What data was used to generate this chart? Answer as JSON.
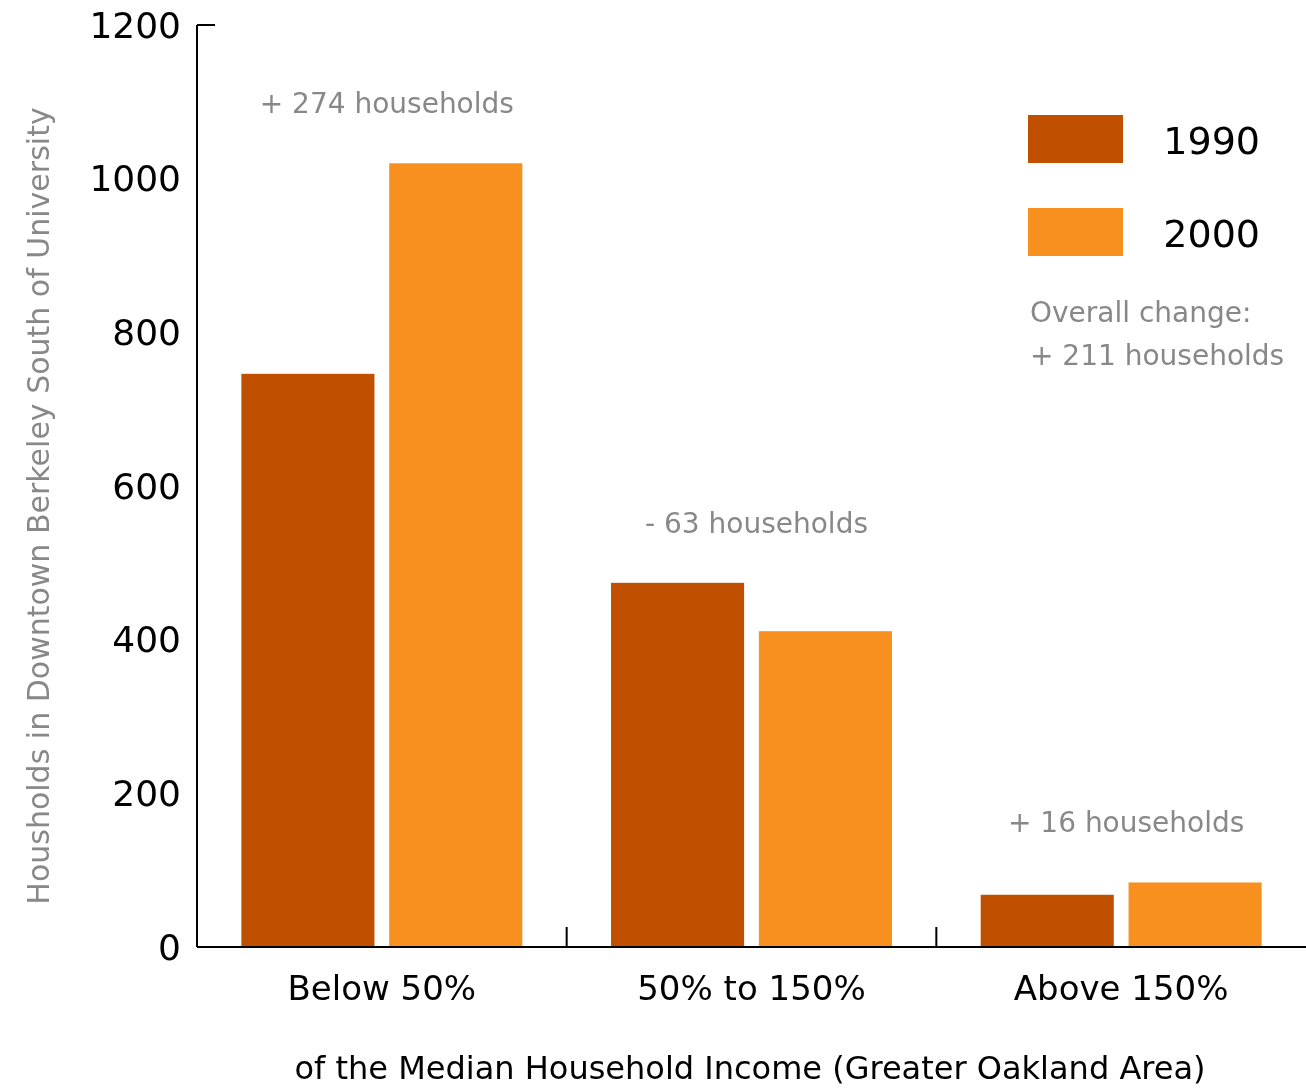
{
  "chart_data": {
    "type": "bar",
    "xlabel": "of the Median Household Income (Greater Oakland Area)",
    "ylabel": "Housholds in Downtown Berkeley South of University",
    "categories": [
      "Below 50%",
      "50% to 150%",
      "Above 150%"
    ],
    "series": [
      {
        "name": "1990",
        "color": "#c05000",
        "values": [
          746,
          474,
          68
        ]
      },
      {
        "name": "2000",
        "color": "#f7901e",
        "values": [
          1020,
          411,
          84
        ]
      }
    ],
    "ylim": [
      0,
      1200
    ],
    "yticks": [
      0,
      200,
      400,
      600,
      800,
      1000,
      1200
    ],
    "grid": false,
    "legend": "top right",
    "annotations": [
      "+ 274 households",
      "- 63 households",
      "+ 16 households",
      "Overall change:\n+ 211 households"
    ]
  }
}
